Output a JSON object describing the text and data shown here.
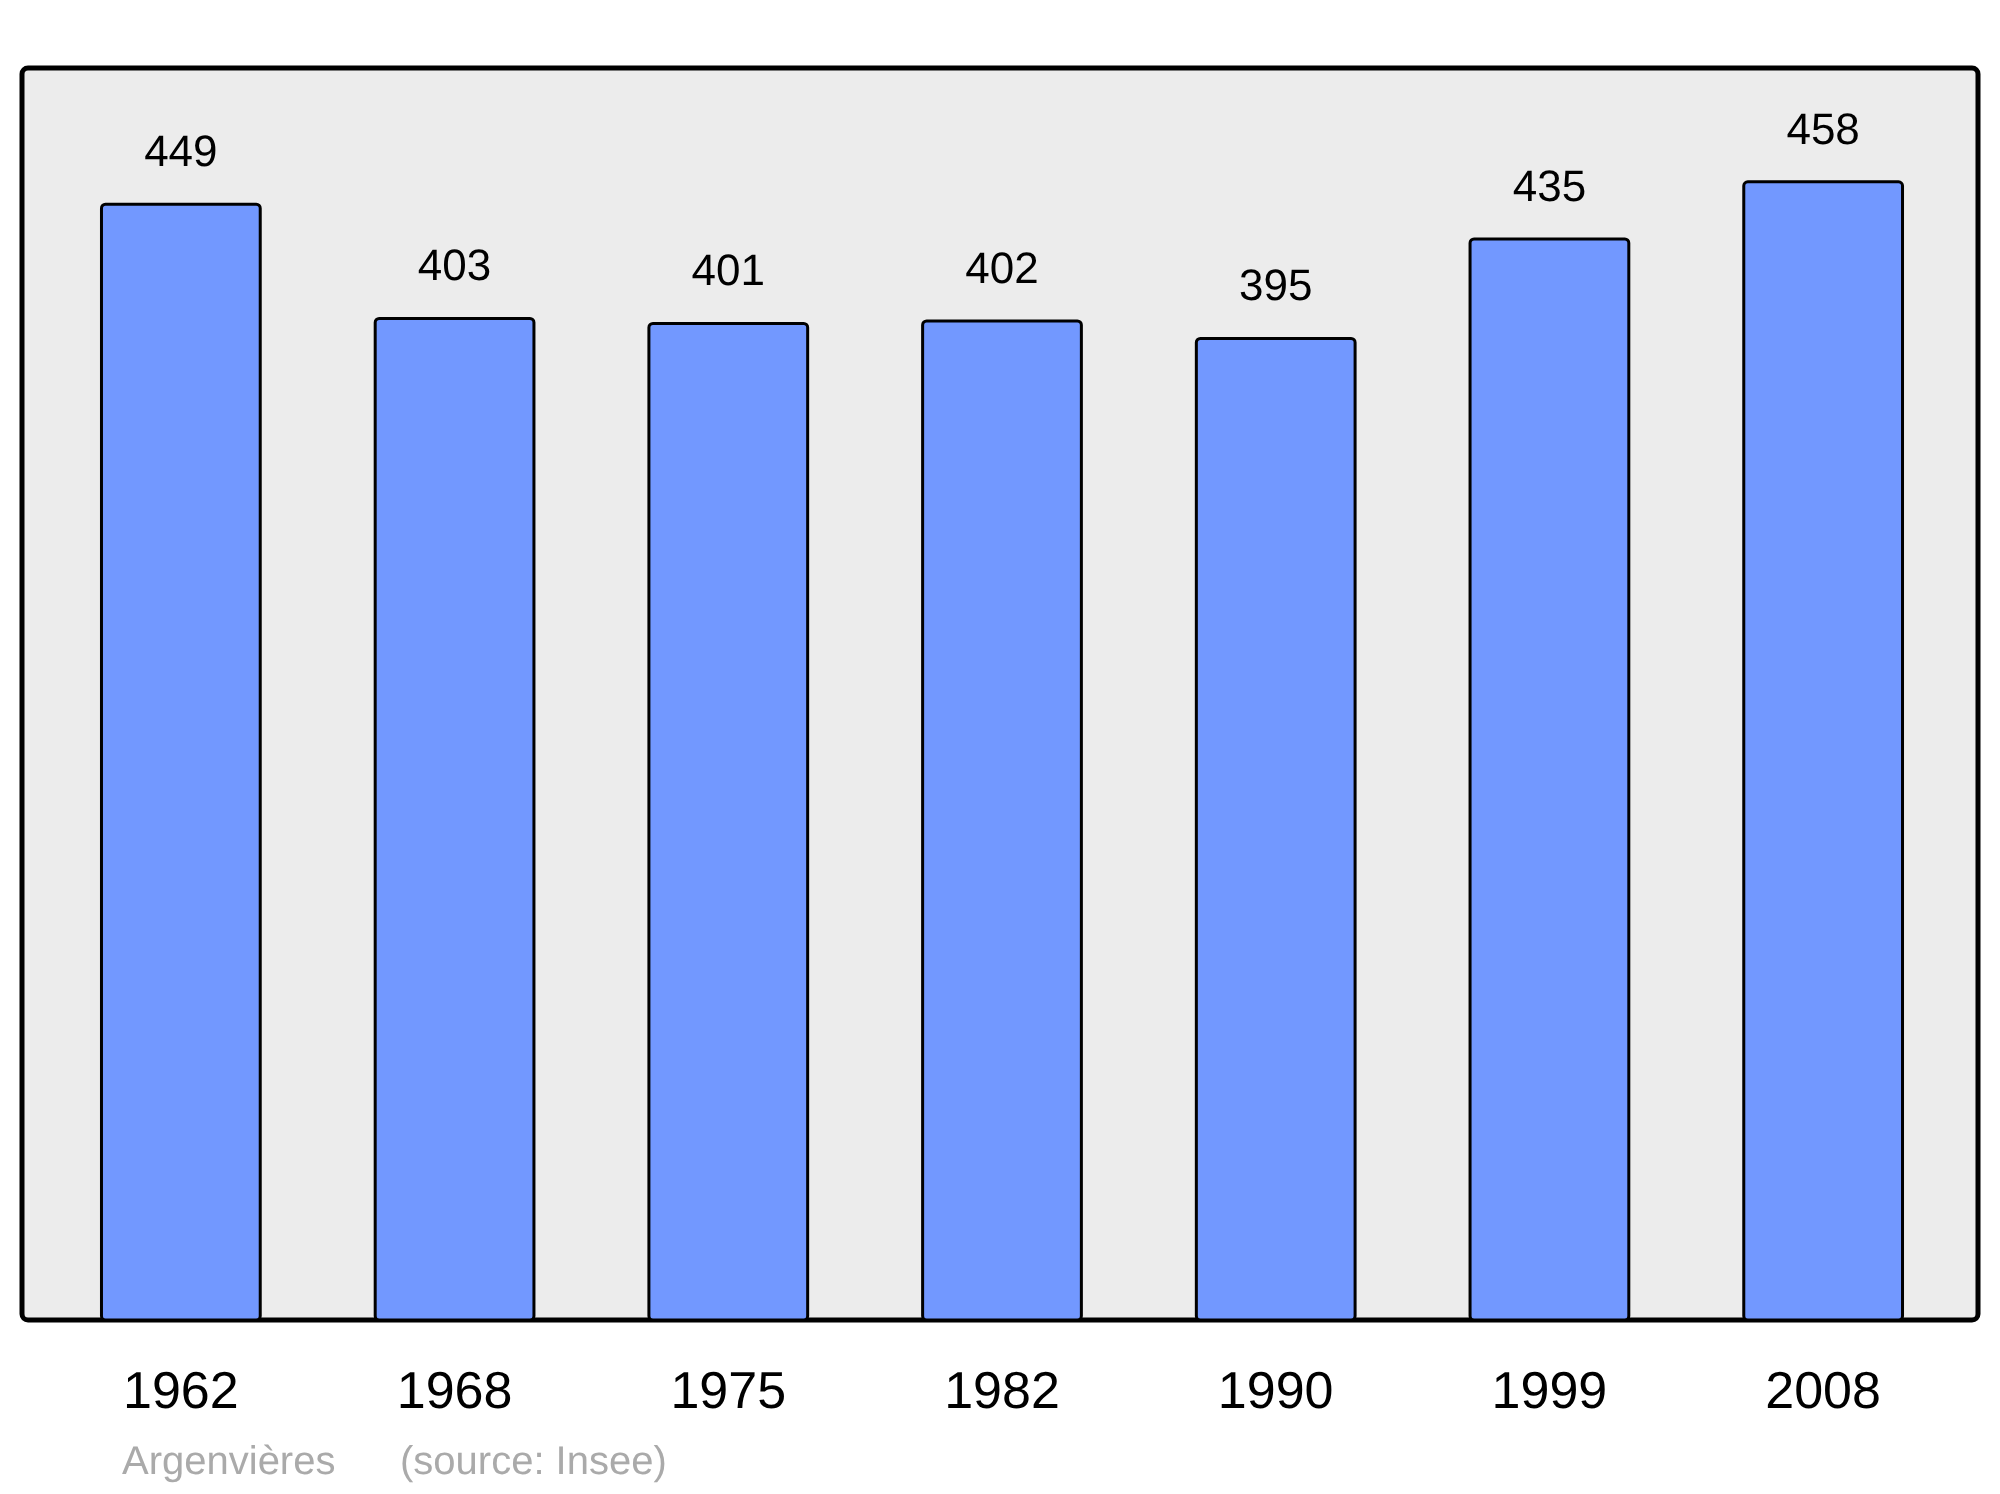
{
  "chart_data": {
    "type": "bar",
    "categories": [
      "1962",
      "1968",
      "1975",
      "1982",
      "1990",
      "1999",
      "2008"
    ],
    "values": [
      449,
      403,
      401,
      402,
      395,
      435,
      458
    ],
    "color": "#7298ff",
    "data_labels": true,
    "annotations": [
      "Argenvières",
      "(source: Insee)"
    ]
  }
}
